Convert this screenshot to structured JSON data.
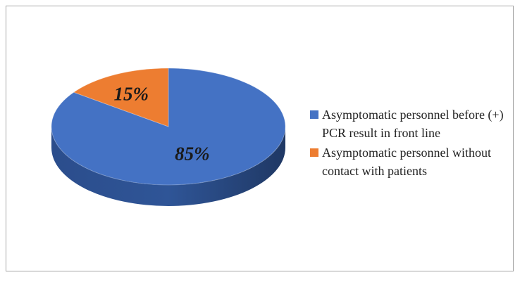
{
  "chart_data": {
    "type": "pie",
    "series": [
      {
        "name": "Asymptomatic personnel before (+) PCR result in front line",
        "color": "#4472c4"
      },
      {
        "name": "Asymptomatic personnel without contact with patients",
        "color": "#ed7d31"
      }
    ],
    "values": [
      85,
      15
    ],
    "value_labels": [
      "85%",
      "15%"
    ]
  }
}
